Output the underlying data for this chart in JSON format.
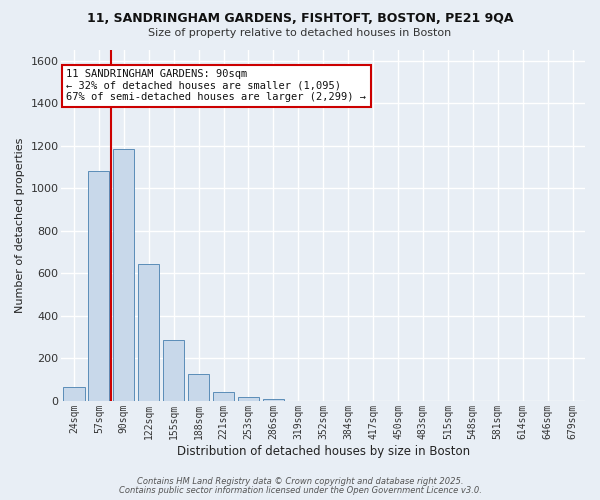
{
  "title_line1": "11, SANDRINGHAM GARDENS, FISHTOFT, BOSTON, PE21 9QA",
  "title_line2": "Size of property relative to detached houses in Boston",
  "xlabel": "Distribution of detached houses by size in Boston",
  "ylabel": "Number of detached properties",
  "bar_labels": [
    "24sqm",
    "57sqm",
    "90sqm",
    "122sqm",
    "155sqm",
    "188sqm",
    "221sqm",
    "253sqm",
    "286sqm",
    "319sqm",
    "352sqm",
    "384sqm",
    "417sqm",
    "450sqm",
    "483sqm",
    "515sqm",
    "548sqm",
    "581sqm",
    "614sqm",
    "646sqm",
    "679sqm"
  ],
  "bar_values": [
    65,
    1080,
    1185,
    645,
    285,
    125,
    40,
    20,
    10,
    0,
    0,
    0,
    0,
    0,
    0,
    0,
    0,
    0,
    0,
    0,
    0
  ],
  "bar_color": "#c8d8ea",
  "bar_edge_color": "#5b8db8",
  "vline_bar_index": 2,
  "vline_color": "#cc0000",
  "ylim": [
    0,
    1650
  ],
  "yticks": [
    0,
    200,
    400,
    600,
    800,
    1000,
    1200,
    1400,
    1600
  ],
  "annotation_title": "11 SANDRINGHAM GARDENS: 90sqm",
  "annotation_line1": "← 32% of detached houses are smaller (1,095)",
  "annotation_line2": "67% of semi-detached houses are larger (2,299) →",
  "annotation_box_color": "#ffffff",
  "annotation_box_edge": "#cc0000",
  "footer_line1": "Contains HM Land Registry data © Crown copyright and database right 2025.",
  "footer_line2": "Contains public sector information licensed under the Open Government Licence v3.0.",
  "bg_color": "#e8eef5",
  "plot_bg_color": "#e8eef5",
  "grid_color": "#ffffff"
}
